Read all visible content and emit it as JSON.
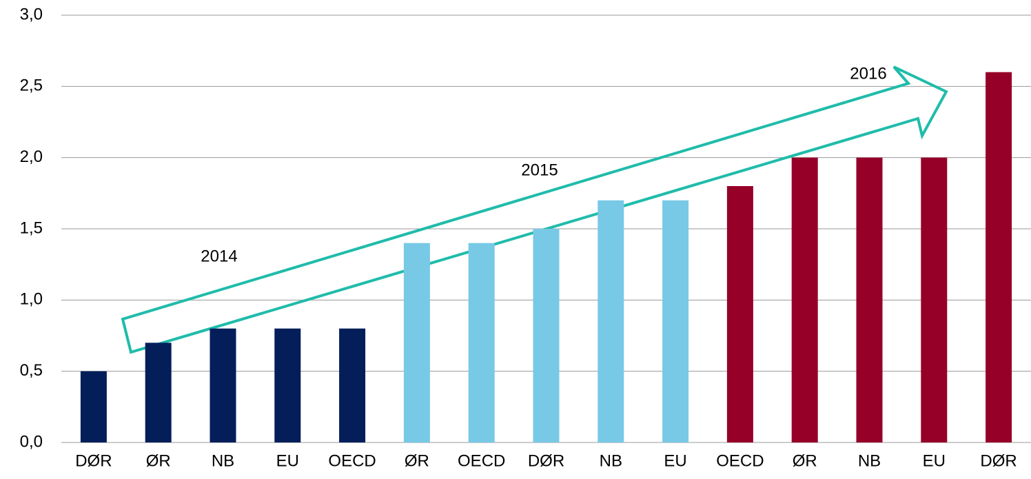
{
  "chart_data": {
    "type": "bar",
    "categories": [
      "DØR",
      "ØR",
      "NB",
      "EU",
      "OECD",
      "ØR",
      "OECD",
      "DØR",
      "NB",
      "EU",
      "OECD",
      "ØR",
      "NB",
      "EU",
      "DØR"
    ],
    "values": [
      0.5,
      0.7,
      0.8,
      0.8,
      0.8,
      1.4,
      1.4,
      1.5,
      1.7,
      1.7,
      1.8,
      2.0,
      2.0,
      2.0,
      2.6
    ],
    "colors": [
      "#041e5a",
      "#041e5a",
      "#041e5a",
      "#041e5a",
      "#041e5a",
      "#77c9e6",
      "#77c9e6",
      "#77c9e6",
      "#77c9e6",
      "#77c9e6",
      "#960028",
      "#960028",
      "#960028",
      "#960028",
      "#960028"
    ],
    "ylim": [
      0,
      3
    ],
    "yticks": [
      {
        "value": 0,
        "label": "0,0"
      },
      {
        "value": 0.5,
        "label": "0,5"
      },
      {
        "value": 1,
        "label": "1,0"
      },
      {
        "value": 1.5,
        "label": "1,5"
      },
      {
        "value": 2,
        "label": "2,0"
      },
      {
        "value": 2.5,
        "label": "2,5"
      },
      {
        "value": 3,
        "label": "3,0"
      }
    ],
    "grid": true,
    "annotations": [
      "2014",
      "2015",
      "2016"
    ]
  }
}
